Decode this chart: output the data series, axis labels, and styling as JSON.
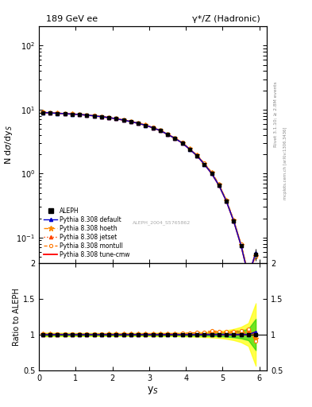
{
  "title_left": "189 GeV ee",
  "title_right": "γ*/Z (Hadronic)",
  "xlabel": "y_S",
  "ylabel_main": "N dσ/dy_S",
  "ylabel_ratio": "Ratio to ALEPH",
  "watermark": "ALEPH_2004_S5765862",
  "rivet_text": "Rivet 3.1.10; ≥ 2.8M events",
  "arxiv_text": "mcplots.cern.ch [arXiv:1306.3436]",
  "x_data": [
    0.1,
    0.3,
    0.5,
    0.7,
    0.9,
    1.1,
    1.3,
    1.5,
    1.7,
    1.9,
    2.1,
    2.3,
    2.5,
    2.7,
    2.9,
    3.1,
    3.3,
    3.5,
    3.7,
    3.9,
    4.1,
    4.3,
    4.5,
    4.7,
    4.9,
    5.1,
    5.3,
    5.5,
    5.7,
    5.9
  ],
  "y_aleph": [
    9.0,
    8.9,
    8.75,
    8.65,
    8.5,
    8.4,
    8.2,
    8.0,
    7.75,
    7.5,
    7.2,
    6.85,
    6.5,
    6.1,
    5.7,
    5.2,
    4.7,
    4.1,
    3.55,
    3.0,
    2.4,
    1.9,
    1.4,
    1.0,
    0.65,
    0.37,
    0.18,
    0.075,
    0.025,
    0.055
  ],
  "aleph_yerr_lo": [
    0.12,
    0.11,
    0.11,
    0.1,
    0.1,
    0.09,
    0.09,
    0.09,
    0.08,
    0.08,
    0.08,
    0.07,
    0.07,
    0.07,
    0.06,
    0.06,
    0.06,
    0.05,
    0.04,
    0.04,
    0.035,
    0.03,
    0.025,
    0.02,
    0.015,
    0.011,
    0.007,
    0.004,
    0.002,
    0.012
  ],
  "aleph_yerr_hi": [
    0.12,
    0.11,
    0.11,
    0.1,
    0.1,
    0.09,
    0.09,
    0.09,
    0.08,
    0.08,
    0.08,
    0.07,
    0.07,
    0.07,
    0.06,
    0.06,
    0.06,
    0.05,
    0.04,
    0.04,
    0.035,
    0.03,
    0.025,
    0.02,
    0.015,
    0.011,
    0.007,
    0.004,
    0.002,
    0.012
  ],
  "y_default": [
    9.0,
    8.9,
    8.75,
    8.65,
    8.5,
    8.4,
    8.2,
    8.0,
    7.75,
    7.5,
    7.2,
    6.85,
    6.5,
    6.1,
    5.7,
    5.2,
    4.7,
    4.1,
    3.55,
    3.0,
    2.4,
    1.9,
    1.4,
    1.0,
    0.65,
    0.37,
    0.18,
    0.075,
    0.025,
    0.057
  ],
  "y_hoeth": [
    9.05,
    8.95,
    8.78,
    8.68,
    8.53,
    8.43,
    8.23,
    8.03,
    7.78,
    7.53,
    7.23,
    6.88,
    6.53,
    6.13,
    5.73,
    5.23,
    4.73,
    4.13,
    3.58,
    3.03,
    2.43,
    1.93,
    1.43,
    1.03,
    0.67,
    0.38,
    0.185,
    0.077,
    0.026,
    0.052
  ],
  "y_jetset": [
    9.02,
    8.92,
    8.77,
    8.67,
    8.52,
    8.42,
    8.22,
    8.02,
    7.77,
    7.52,
    7.22,
    6.87,
    6.52,
    6.12,
    5.72,
    5.22,
    4.72,
    4.12,
    3.57,
    3.02,
    2.42,
    1.92,
    1.42,
    1.02,
    0.66,
    0.375,
    0.182,
    0.076,
    0.0255,
    0.055
  ],
  "y_montull": [
    9.08,
    8.98,
    8.8,
    8.7,
    8.55,
    8.45,
    8.25,
    8.05,
    7.8,
    7.55,
    7.25,
    6.9,
    6.55,
    6.15,
    5.75,
    5.25,
    4.75,
    4.15,
    3.6,
    3.05,
    2.45,
    1.95,
    1.45,
    1.05,
    0.68,
    0.385,
    0.188,
    0.079,
    0.027,
    0.05
  ],
  "y_tunecmw": [
    9.0,
    8.9,
    8.75,
    8.65,
    8.5,
    8.4,
    8.2,
    8.0,
    7.75,
    7.5,
    7.2,
    6.85,
    6.5,
    6.1,
    5.7,
    5.2,
    4.7,
    4.1,
    3.55,
    3.0,
    2.4,
    1.9,
    1.4,
    1.0,
    0.65,
    0.37,
    0.18,
    0.075,
    0.025,
    0.057
  ],
  "color_aleph": "#000000",
  "color_default": "#0000cc",
  "color_hoeth": "#ff8800",
  "color_jetset": "#ff4400",
  "color_montull": "#ff7700",
  "color_tunecmw": "#ff0000",
  "ylim_main": [
    0.04,
    200
  ],
  "ylim_ratio": [
    0.5,
    2.0
  ],
  "xlim": [
    0,
    6.2
  ],
  "ratio_yticks": [
    0.5,
    1.0,
    1.5,
    2.0
  ],
  "ratio_yticklabels": [
    "0.5",
    "1",
    "1.5",
    "2"
  ]
}
